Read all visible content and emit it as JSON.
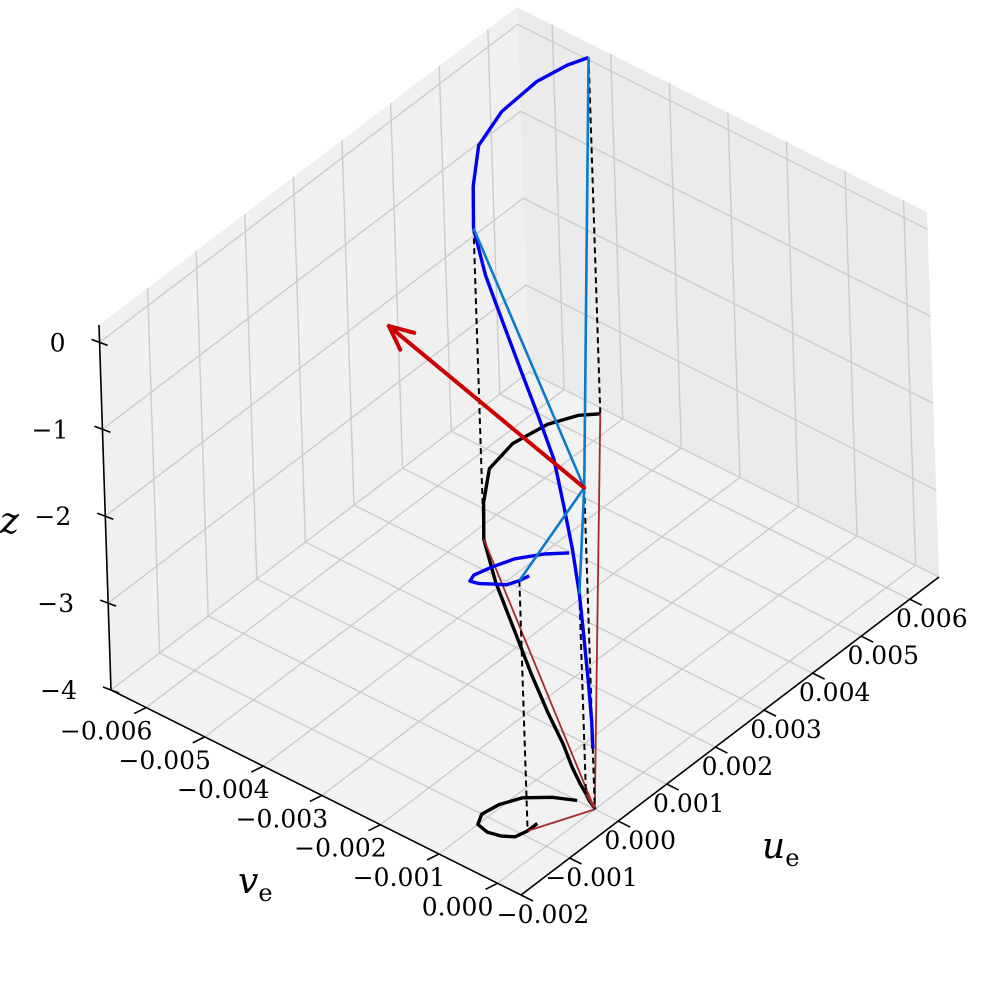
{
  "chart_data": {
    "type": "line",
    "projection": "3d",
    "title": "",
    "axes": {
      "u": {
        "label_main": "u",
        "label_sub": "e",
        "range": [
          -0.002,
          0.0066
        ],
        "ticks": [
          -0.002,
          -0.001,
          0.0,
          0.001,
          0.002,
          0.003,
          0.004,
          0.005,
          0.006
        ],
        "tick_labels": [
          "−0.002",
          "−0.001",
          "0.000",
          "0.001",
          "0.002",
          "0.003",
          "0.004",
          "0.005",
          "0.006"
        ]
      },
      "v": {
        "label_main": "v",
        "label_sub": "e",
        "range": [
          -0.0066,
          0.0004
        ],
        "ticks": [
          0.0,
          -0.001,
          -0.002,
          -0.003,
          -0.004,
          -0.005,
          -0.006
        ],
        "tick_labels": [
          "0.000",
          "−0.001",
          "−0.002",
          "−0.003",
          "−0.004",
          "−0.005",
          "−0.006"
        ]
      },
      "z": {
        "label_main": "z",
        "range": [
          -4,
          0.2
        ],
        "ticks": [
          0,
          -1,
          -2,
          -3,
          -4
        ],
        "tick_labels": [
          "0",
          "−1",
          "−2",
          "−3",
          "−4"
        ]
      }
    },
    "grid": true,
    "colors": {
      "trajectory": "#0000ee",
      "shadow": "#000000",
      "top_links": "#0a7bcc",
      "bottom_links": "#a52a2a",
      "arrow": "#cc0000",
      "drops": "#000000",
      "pane": "#f2f2f2",
      "grid": "#cccccc"
    },
    "trajectory": {
      "u": [
        0.0,
        2e-05,
        5e-05,
        0.0001,
        0.00018,
        0.0003,
        0.0005,
        0.0008,
        0.0012,
        0.0017,
        0.0023,
        0.0029,
        0.0035,
        0.0041,
        0.0047,
        0.0053,
        0.0059,
        0.0063,
        0.0065
      ],
      "v": [
        0.0,
        -2e-05,
        -8e-05,
        -0.00018,
        -0.0003,
        -0.0005,
        -0.0008,
        -0.0012,
        -0.0018,
        -0.0025,
        -0.0033,
        -0.0041,
        -0.0048,
        -0.0053,
        -0.0057,
        -0.0058,
        -0.0057,
        -0.0055,
        -0.0053
      ],
      "z": [
        -3.3,
        -3.0,
        -2.6,
        -2.1,
        -1.7,
        -1.3,
        -0.98,
        -0.72,
        -0.58,
        -0.52,
        -0.5,
        -0.47,
        -0.42,
        -0.36,
        -0.28,
        -0.18,
        -0.06,
        0.03,
        0.1
      ]
    },
    "lag_trajectory": {
      "u": [
        -0.0007,
        -0.0009,
        -0.0011,
        -0.0012,
        -0.00125,
        -0.0012,
        -0.001,
        -0.0007,
        -0.0004,
        -0.00015,
        0.0
      ],
      "v": [
        -0.0004,
        -0.0004,
        -0.00045,
        -0.0006,
        -0.0008,
        -0.001,
        -0.0011,
        -0.00105,
        -0.0009,
        -0.0006,
        -0.0003
      ],
      "z": [
        -1.15,
        -1.12,
        -1.1,
        -1.1,
        -1.14,
        -1.2,
        -1.25,
        -1.27,
        -1.25,
        -1.2,
        -1.15
      ]
    },
    "marked_points": {
      "origin": {
        "u": 0.0,
        "v": 0.0,
        "z": -0.3
      },
      "points": [
        {
          "u": 0.0065,
          "v": -0.0053,
          "z": 0.1
        },
        {
          "u": 0.0035,
          "v": -0.0048,
          "z": -0.42
        },
        {
          "u": -0.0009,
          "v": -0.0004,
          "z": -1.12
        },
        {
          "u": 0.00018,
          "v": -0.0003,
          "z": -1.7
        }
      ]
    },
    "wind_arrow": {
      "start": {
        "u": 0.0,
        "v": 0.0,
        "z": -0.3
      },
      "end": {
        "u": 0.0,
        "v": -0.0033,
        "z": 0.45
      }
    }
  }
}
